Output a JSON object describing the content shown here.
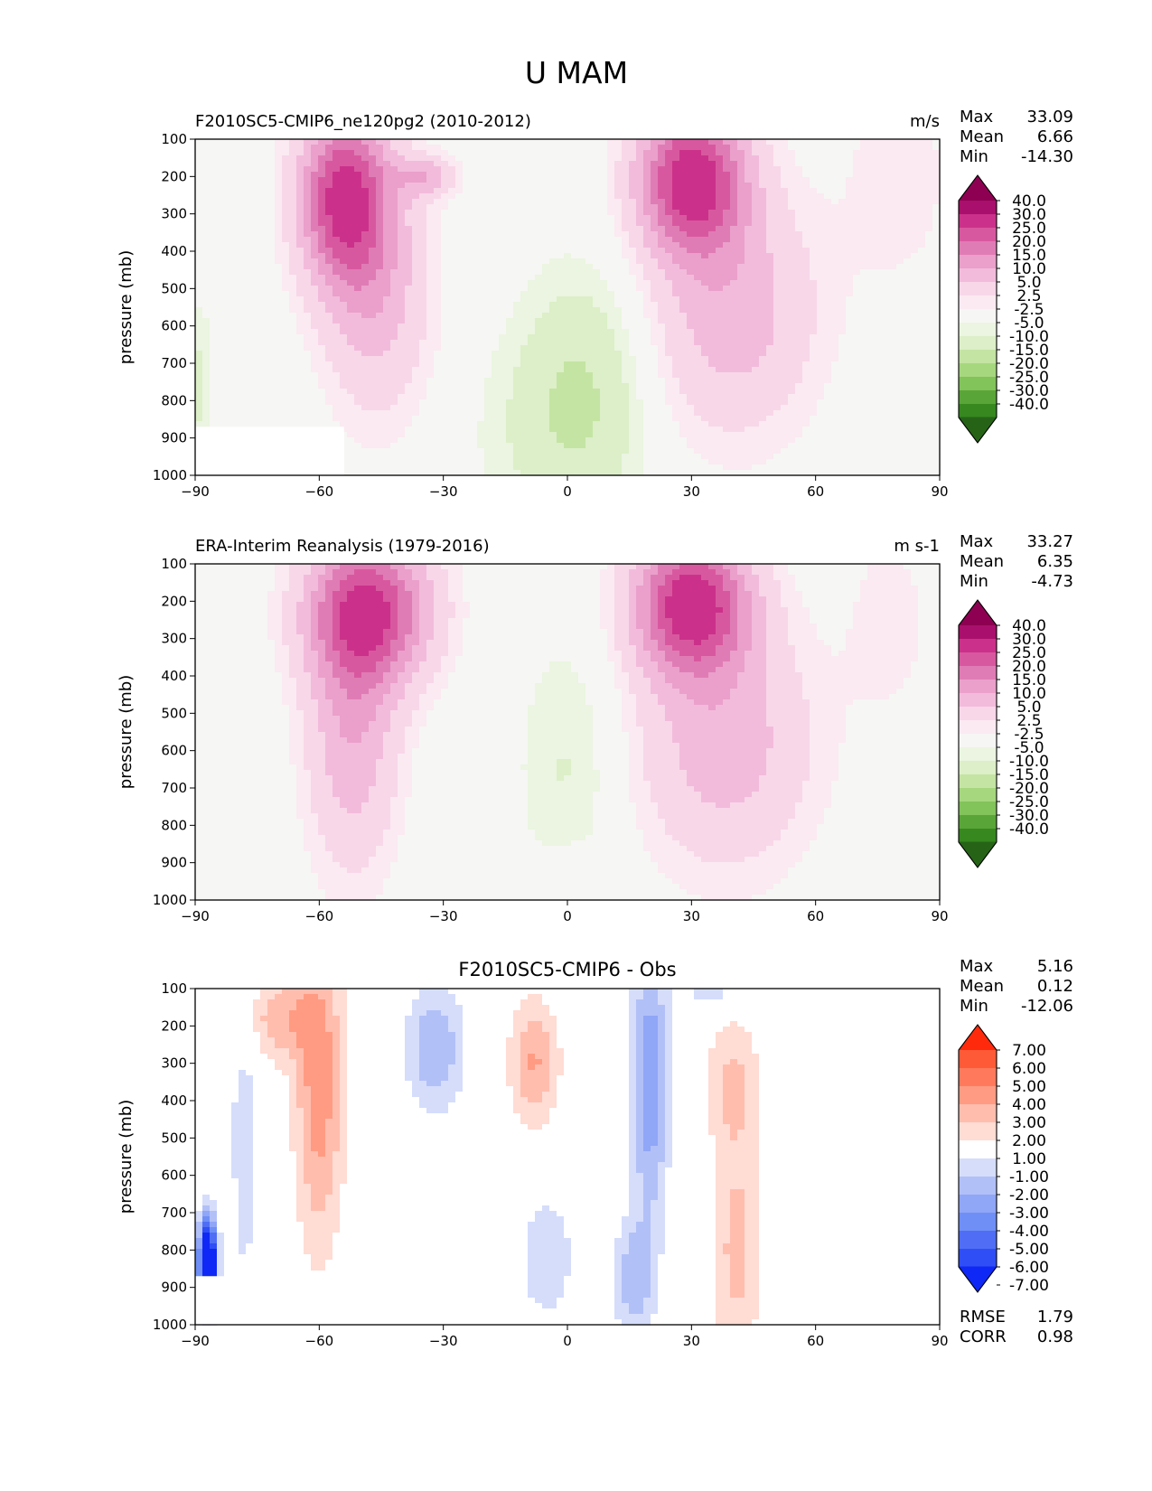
{
  "figure_title": "U MAM",
  "colors": {
    "wind": [
      "#266317",
      "#36881f",
      "#5aa537",
      "#82c35a",
      "#a6d77e",
      "#c4e4a3",
      "#dcefc8",
      "#ebf5e1",
      "#f6f6f4",
      "#fbeaf1",
      "#f8d7e9",
      "#f2bbdb",
      "#eaa0cb",
      "#e07cb5",
      "#d8589f",
      "#cb318a",
      "#a90f6c",
      "#8e0152"
    ],
    "diff": [
      "#0f28f5",
      "#2f4ef5",
      "#4f6ef5",
      "#6f8ff6",
      "#90a6f7",
      "#b2c0f8",
      "#d5ddfb",
      "#ffffff",
      "#ffdcd4",
      "#ffbdae",
      "#ff9b82",
      "#ff7a5c",
      "#ff5a37",
      "#ff2a0c"
    ]
  },
  "chart_data": [
    {
      "type": "contour",
      "title": "F2010SC5-CMIP6_ne120pg2 (2010-2012)",
      "units": "m/s",
      "xlabel": "",
      "ylabel": "pressure (mb)",
      "xlim": [
        -90,
        90
      ],
      "ylim": [
        1000,
        100
      ],
      "xticks": [
        "−90",
        "−60",
        "−30",
        "0",
        "30",
        "60",
        "90"
      ],
      "yticks": [
        "100",
        "200",
        "300",
        "400",
        "500",
        "600",
        "700",
        "800",
        "900",
        "1000"
      ],
      "stats": [
        {
          "label": "Max",
          "value": "33.09"
        },
        {
          "label": "Mean",
          "value": "6.66"
        },
        {
          "label": "Min",
          "value": "-14.30"
        }
      ],
      "colorbar_levels": [
        "40.0",
        "30.0",
        "25.0",
        "20.0",
        "15.0",
        "10.0",
        "5.0",
        "2.5",
        "-2.5",
        "-5.0",
        "-10.0",
        "-15.0",
        "-20.0",
        "-25.0",
        "-30.0",
        "-40.0"
      ],
      "masked_region": {
        "lat": [
          -90,
          -54
        ],
        "p": [
          870,
          1000
        ]
      },
      "features": [
        {
          "name": "sh-jet",
          "lat": -53,
          "p": 250,
          "value": 30
        },
        {
          "name": "nh-jet",
          "lat": 31,
          "p": 190,
          "value": 32
        },
        {
          "name": "tropical-easterlies",
          "lat": 5,
          "p": 750,
          "value": -8
        }
      ]
    },
    {
      "type": "contour",
      "title": "ERA-Interim Reanalysis (1979-2016)",
      "units": "m s-1",
      "xlabel": "",
      "ylabel": "pressure (mb)",
      "xlim": [
        -90,
        90
      ],
      "ylim": [
        1000,
        100
      ],
      "xticks": [
        "−90",
        "−60",
        "−30",
        "0",
        "30",
        "60",
        "90"
      ],
      "yticks": [
        "100",
        "200",
        "300",
        "400",
        "500",
        "600",
        "700",
        "800",
        "900",
        "1000"
      ],
      "stats": [
        {
          "label": "Max",
          "value": "33.27"
        },
        {
          "label": "Mean",
          "value": "6.35"
        },
        {
          "label": "Min",
          "value": "-4.73"
        }
      ],
      "colorbar_levels": [
        "40.0",
        "30.0",
        "25.0",
        "20.0",
        "15.0",
        "10.0",
        "5.0",
        "2.5",
        "-2.5",
        "-5.0",
        "-10.0",
        "-15.0",
        "-20.0",
        "-25.0",
        "-30.0",
        "-40.0"
      ],
      "features": [
        {
          "name": "sh-jet",
          "lat": -45,
          "p": 220,
          "value": 28
        },
        {
          "name": "nh-jet",
          "lat": 30,
          "p": 190,
          "value": 32
        },
        {
          "name": "tropical-easterlies",
          "lat": 0,
          "p": 650,
          "value": -4
        }
      ]
    },
    {
      "type": "contour",
      "title": "F2010SC5-CMIP6 - Obs",
      "units": "",
      "xlabel": "",
      "ylabel": "pressure (mb)",
      "xlim": [
        -90,
        90
      ],
      "ylim": [
        1000,
        100
      ],
      "xticks": [
        "−90",
        "−60",
        "−30",
        "0",
        "30",
        "60",
        "90"
      ],
      "yticks": [
        "100",
        "200",
        "300",
        "400",
        "500",
        "600",
        "700",
        "800",
        "900",
        "1000"
      ],
      "stats": [
        {
          "label": "Max",
          "value": "5.16"
        },
        {
          "label": "Mean",
          "value": "0.12"
        },
        {
          "label": "Min",
          "value": "-12.06"
        }
      ],
      "colorbar_levels": [
        "7.00",
        "6.00",
        "5.00",
        "4.00",
        "3.00",
        "2.00",
        "1.00",
        "-1.00",
        "-2.00",
        "-3.00",
        "-4.00",
        "-5.00",
        "-6.00",
        "-7.00"
      ],
      "metrics": [
        {
          "label": "RMSE",
          "value": "1.79"
        },
        {
          "label": "CORR",
          "value": "0.98"
        }
      ],
      "masked_region": {
        "lat": [
          -90,
          -55
        ],
        "p": [
          870,
          1000
        ]
      }
    }
  ]
}
